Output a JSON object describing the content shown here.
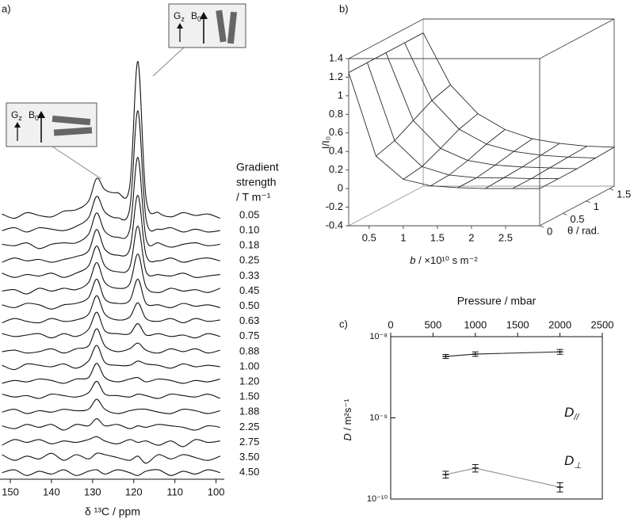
{
  "chart_data": [
    {
      "type": "ridgeline",
      "panel": "a)",
      "xlabel": "δ ¹³C / ppm",
      "legend_title": [
        "Gradient",
        "strength",
        "/ T m⁻¹"
      ],
      "xlim": [
        152.5,
        98
      ],
      "xticks": [
        150,
        140,
        130,
        120,
        110,
        100
      ],
      "color": "#111",
      "callouts": [
        {
          "gradient": "G",
          "gradient_sub": "z",
          "field": "B",
          "field_sub": "0"
        },
        {
          "gradient": "G",
          "gradient_sub": "z",
          "field": "B",
          "field_sub": "0"
        }
      ],
      "x": [
        152,
        149,
        146,
        143,
        140,
        137,
        134,
        131,
        129,
        127,
        124,
        121,
        119,
        117,
        114,
        111,
        108,
        105,
        102,
        99
      ],
      "series": [
        {
          "name": "0.05",
          "values": [
            0.1,
            -0.2,
            0.2,
            0,
            -0.1,
            0.3,
            0.4,
            1.0,
            2.6,
            1.8,
            1.6,
            2.0,
            10.8,
            1.2,
            0.2,
            -0.1,
            0.2,
            0,
            0.1,
            -0.2
          ]
        },
        {
          "name": "0.10",
          "values": [
            0,
            0.2,
            -0.1,
            0.2,
            0.1,
            0,
            0.3,
            0.9,
            2.4,
            1.3,
            0.9,
            1.5,
            8.4,
            0.8,
            0.1,
            0.2,
            -0.1,
            0.1,
            -0.1,
            0
          ]
        },
        {
          "name": "0.18",
          "values": [
            0.1,
            0,
            0.2,
            -0.2,
            0.1,
            0.2,
            0.2,
            0.8,
            2.3,
            1.0,
            0.6,
            1.1,
            6.2,
            0.5,
            0.2,
            -0.1,
            0.1,
            0.2,
            0,
            0.1
          ]
        },
        {
          "name": "0.25",
          "values": [
            -0.1,
            0.2,
            0,
            0.1,
            -0.1,
            0.1,
            0.3,
            0.7,
            2.2,
            0.8,
            0.4,
            0.8,
            4.6,
            0.4,
            0,
            0.2,
            -0.1,
            0.1,
            0.2,
            0
          ]
        },
        {
          "name": "0.33",
          "values": [
            0.2,
            -0.1,
            0.1,
            0,
            0.2,
            -0.1,
            0.2,
            0.7,
            2.1,
            0.7,
            0.3,
            0.6,
            3.5,
            0.3,
            0.1,
            0,
            0.2,
            -0.1,
            0,
            0.1
          ]
        },
        {
          "name": "0.45",
          "values": [
            0,
            0.1,
            -0.2,
            0.2,
            0,
            0.2,
            0.1,
            0.6,
            2.0,
            0.6,
            0.2,
            0.5,
            2.6,
            0.3,
            -0.1,
            0.2,
            0,
            0.1,
            -0.1,
            0.2
          ]
        },
        {
          "name": "0.50",
          "values": [
            0.1,
            -0.1,
            0.2,
            0.1,
            -0.2,
            0.1,
            0.2,
            0.6,
            1.9,
            0.5,
            0.2,
            0.4,
            1.9,
            0.2,
            0.1,
            -0.1,
            0.2,
            0,
            0.1,
            -0.1
          ]
        },
        {
          "name": "0.63",
          "values": [
            -0.1,
            0.2,
            0,
            -0.1,
            0.2,
            0,
            0.1,
            0.5,
            1.8,
            0.5,
            0.1,
            0.3,
            1.3,
            0.2,
            0,
            0.2,
            -0.1,
            0.2,
            0,
            0.1
          ]
        },
        {
          "name": "0.75",
          "values": [
            0.2,
            0,
            0.1,
            0.2,
            -0.1,
            0.2,
            0,
            0.5,
            1.7,
            0.4,
            0.2,
            0.2,
            0.9,
            0.1,
            0.2,
            0,
            0.1,
            -0.1,
            0.2,
            0
          ]
        },
        {
          "name": "0.88",
          "values": [
            0,
            0.1,
            -0.1,
            0,
            0.2,
            -0.1,
            0.2,
            0.4,
            1.6,
            0.4,
            0,
            0.2,
            0.6,
            0.1,
            -0.1,
            0.2,
            0,
            0.2,
            -0.1,
            0.1
          ]
        },
        {
          "name": "1.00",
          "values": [
            0.1,
            -0.2,
            0.2,
            0.1,
            0,
            0.2,
            -0.1,
            0.4,
            1.5,
            0.3,
            0.1,
            0.1,
            0.4,
            0.2,
            0.1,
            -0.1,
            0.2,
            0,
            0.1,
            0
          ]
        },
        {
          "name": "1.20",
          "values": [
            -0.1,
            0.1,
            0,
            0.2,
            0.1,
            -0.1,
            0.2,
            0.3,
            1.3,
            0.3,
            0,
            0.2,
            0.3,
            0,
            0.2,
            0.1,
            -0.1,
            0.1,
            0,
            0.2
          ]
        },
        {
          "name": "1.50",
          "values": [
            0.2,
            0,
            0.1,
            -0.1,
            0.2,
            0.1,
            0,
            0.3,
            1.1,
            0.2,
            0.1,
            0,
            0.2,
            0.1,
            -0.1,
            0.2,
            0.1,
            0,
            0.2,
            -0.1
          ]
        },
        {
          "name": "1.88",
          "values": [
            0,
            0.2,
            -0.1,
            0.1,
            0,
            0.2,
            0.1,
            0.2,
            0.9,
            0.2,
            -0.1,
            0.1,
            0.2,
            0.2,
            0,
            -0.1,
            0.2,
            0.1,
            -0.1,
            0.1
          ]
        },
        {
          "name": "2.25",
          "values": [
            0.1,
            -0.1,
            0.2,
            0,
            0.2,
            -0.2,
            0.2,
            0.1,
            0.6,
            0.1,
            0.2,
            -0.1,
            0.1,
            0,
            0.2,
            0.1,
            0,
            -0.2,
            0.1,
            0
          ]
        },
        {
          "name": "2.75",
          "values": [
            -0.2,
            0.2,
            0,
            0.2,
            -0.1,
            0.1,
            0,
            0.2,
            0.4,
            0.1,
            -0.1,
            0.2,
            0,
            0.1,
            -0.2,
            0.1,
            -0.3,
            0.2,
            0,
            0.1
          ]
        },
        {
          "name": "3.50",
          "values": [
            0.2,
            -0.2,
            0.1,
            -0.1,
            0.3,
            -0.2,
            0.2,
            -0.1,
            0.3,
            0.2,
            0,
            -0.2,
            0.1,
            -0.4,
            0.2,
            -0.1,
            0.2,
            0,
            -0.2,
            0.1
          ]
        },
        {
          "name": "4.50",
          "values": [
            0,
            0.2,
            -0.2,
            0.1,
            -0.1,
            0.2,
            -0.2,
            0.1,
            0.2,
            -0.1,
            0.2,
            0,
            -0.2,
            0.1,
            0.2,
            -0.2,
            0.1,
            -0.1,
            0.2,
            0
          ]
        }
      ]
    },
    {
      "type": "surface",
      "panel": "b)",
      "xlabel": "b",
      "xlabel_unit": " / ×10¹⁰ s m⁻²",
      "ylabel": "θ / rad.",
      "zlabel": "I/I₀",
      "xlim": [
        0.2,
        3.0
      ],
      "xticks": [
        0.5,
        1,
        1.5,
        2,
        2.5
      ],
      "ylim": [
        0,
        1.6
      ],
      "yticks": [
        0,
        0.5,
        1,
        1.5
      ],
      "zlim": [
        -0.4,
        1.4
      ],
      "zticks": [
        -0.4,
        -0.2,
        0,
        0.2,
        0.4,
        0.6,
        0.8,
        1,
        1.2,
        1.4
      ],
      "color": "#2a2a2a",
      "surface": {
        "b": [
          0.2,
          0.6,
          1.0,
          1.4,
          1.8,
          2.2,
          2.6,
          3.0
        ],
        "theta": [
          0,
          0.4,
          0.8,
          1.2,
          1.6
        ],
        "z": [
          [
            1.25,
            0.35,
            0.1,
            0.03,
            0.01,
            0,
            0,
            0
          ],
          [
            1.25,
            0.41,
            0.13,
            0.04,
            0.01,
            0.01,
            0,
            0
          ],
          [
            1.25,
            0.52,
            0.22,
            0.09,
            0.04,
            0.02,
            0.01,
            0
          ],
          [
            1.25,
            0.63,
            0.32,
            0.16,
            0.08,
            0.04,
            0.02,
            0.01
          ],
          [
            1.25,
            0.69,
            0.38,
            0.21,
            0.11,
            0.06,
            0.03,
            0.02
          ]
        ]
      }
    },
    {
      "type": "errorbar",
      "panel": "c)",
      "xlabel": "Pressure / mbar",
      "ylabel": "D",
      "ylabel_unit": " / m²s⁻¹",
      "xlim": [
        0,
        2500
      ],
      "xticks": [
        0,
        500,
        1000,
        1500,
        2000,
        2500
      ],
      "ylim": [
        1e-10,
        1e-08
      ],
      "log_y": true,
      "yticks": [
        {
          "value": 1e-10,
          "label": "10⁻¹⁰"
        },
        {
          "value": 1e-09,
          "label": "10⁻⁹"
        },
        {
          "value": 1e-08,
          "label": "10⁻⁸"
        }
      ],
      "x": [
        650,
        1000,
        2000
      ],
      "series": [
        {
          "name": "D",
          "subscript": "//",
          "color": "#333333",
          "values": [
            5.7e-09,
            6.1e-09,
            6.5e-09
          ],
          "errors": [
            2e-10,
            2.5e-10,
            3e-10
          ]
        },
        {
          "name": "D",
          "subscript": "⊥",
          "color": "#999999",
          "values": [
            2e-10,
            2.4e-10,
            1.4e-10
          ],
          "errors": [
            1.5e-11,
            2e-11,
            1.5e-11
          ]
        }
      ]
    }
  ]
}
